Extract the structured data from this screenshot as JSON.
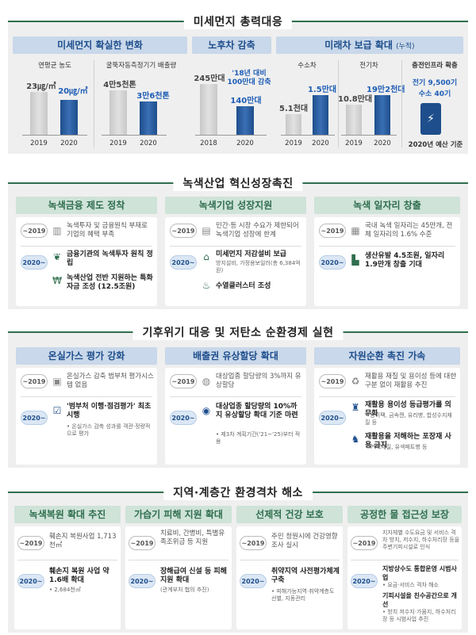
{
  "s1": {
    "title": "미세먼지 총력대응",
    "h_change": "미세먼지 확실한 변화",
    "h_old": "노후차 감축",
    "h_future": "미래차 보급 확대",
    "h_future_note": "(누적)",
    "c1_label": "연평균 농도",
    "c1_v2019": "23㎍/㎥",
    "c1_v2020": "20㎍/㎥",
    "c2_label": "굴뚝자동측정기기 배출량",
    "c2_v2019": "4만5천톤",
    "c2_v2020": "3만6천톤",
    "c3_v2018": "245만대",
    "c3_note": "'18년 대비 100만대 감축",
    "c3_v2020": "140만대",
    "c4_label": "수소차",
    "c4_v2019": "5.1천대",
    "c4_v2020": "1.5만대",
    "c5_label": "전기차",
    "c5_v2019": "10.8만대",
    "c5_v2020": "19만2천대",
    "c6_label": "충전인프라 확충",
    "c6_ev": "전기 9,500기",
    "c6_h2": "수소 40기",
    "y2018": "2018",
    "y2019": "2019",
    "y2020": "2020",
    "budget": "2020년 예산 기준"
  },
  "s2": {
    "title": "녹색산업 혁신성장촉진",
    "h1": "녹색금융 제도 정착",
    "h2": "녹색기업 성장지원",
    "h3": "녹색 일자리 창출",
    "tag_old": "~2019",
    "tag_new": "2020~",
    "a_old": "녹색투자 및 금융원칙 부재로 기업의 혜택 부족",
    "a_new1": "금융기관의 녹색투자 원칙 정립",
    "a_new2": "녹색산업 전반 지원하는 특화자금 조성 (12.5조원)",
    "b_old": "민간·등 시장 수요가 제한되어 녹색기업 성장에 한계",
    "b_new1": "미세먼지 저감설비 보급",
    "b_new1_sub": "방지설비, 가정용보일러(총 6,384억원)",
    "b_new2": "수열클러스터 조성",
    "c_old": "국내 녹색 일자리는 45만개, 전체 일자리의 1.6% 수준",
    "c_new": "생산유발 4.5조원, 일자리 1.9만개 창출 기대"
  },
  "s3": {
    "title": "기후위기 대응 및 저탄소 순환경제 실현",
    "h1": "온실가스 평가 강화",
    "h2": "배출권 유상할당 확대",
    "h3": "자원순환 촉진 가속",
    "tag_old": "~2019",
    "tag_new": "2020~",
    "a_old": "온실가스 감축 범부처 평가시스템 없음",
    "a_new": "'범부처 이행·점검평가' 최초 시행",
    "a_new_sub": "• 온실가스 감축 성과를 객관·정량적으로 평가",
    "b_old": "대상업종 할당량의 3%까지 유상할당",
    "b_new": "대상업종 할당량의 10%까지 유상할당 확대 기준 마련",
    "b_new_sub": "• 제3차 계획기간('21~'25)부터 적용",
    "c_old": "재활용 재질 및 용이성 등에 대한 구분 없이 재활용 추진",
    "c_new1": "재활용 용이성 등급평가를 의무화",
    "c_new1_sub": "• 종이팩, 금속캔, 유리병, 합성수지재질 등",
    "c_new2": "재활용을 저해하는 포장재 사용 금지",
    "c_new2_sub": "• PVC재질, 유색페트병 등"
  },
  "s4": {
    "title": "지역·계층간 환경격차 해소",
    "h1": "녹색복원 확대 추진",
    "h2": "가습기 피해 지원 확대",
    "h3": "선제적 건강 보호",
    "h4": "공정한 물 접근성 보장",
    "tag_old": "~2019",
    "tag_new": "2020~",
    "a_old": "훼손지 복원사업 1,713천㎡",
    "a_new": "훼손지 복원 사업 약 1.6배 확대",
    "a_new_sub": "• 2,684천㎡",
    "b_old": "치료비, 간병비, 특별유족조위금 등 지원",
    "b_new": "장해급여 신설 등 피해지원 확대",
    "b_new_sub": "(관계부처 협의 추진)",
    "c_old": "주민 청원시에 건강영향 조사 실시",
    "c_new": "취약지역 사전평가체계 구축",
    "c_new_sub": "• 피해가능지역·취약계층도 선별, 지동관리",
    "d_old": "지자체별 수도요금 및 서비스 격차 방치, 저수지, 하수처리장 등을 주변기피시설로 인식",
    "d_new1": "지방상수도 통합운영 시범사업",
    "d_new1_sub": "• 요금·서비스 격차 해소",
    "d_new2": "기피시설을 친수공간으로 개선",
    "d_new2_sub": "• 방치 저수지·가뭄지, 하수처리장 등 시범사업 추진"
  },
  "colors": {
    "green": "#2f6e4e",
    "blue": "#1e4e8c",
    "bg": "#efefef"
  }
}
